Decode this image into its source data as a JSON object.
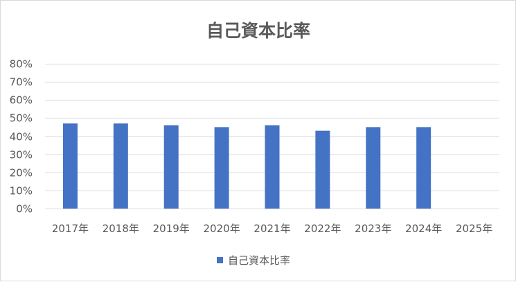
{
  "chart_data": {
    "type": "bar",
    "title": "自己資本比率",
    "xlabel": "",
    "ylabel": "",
    "categories": [
      "2017年",
      "2018年",
      "2019年",
      "2020年",
      "2021年",
      "2022年",
      "2023年",
      "2024年",
      "2025年"
    ],
    "series": [
      {
        "name": "自己資本比率",
        "values": [
          0.47,
          0.47,
          0.46,
          0.45,
          0.46,
          0.43,
          0.45,
          0.45,
          null
        ],
        "color": "#4472c4"
      }
    ],
    "ylim": [
      0,
      0.8
    ],
    "yticks": [
      0,
      0.1,
      0.2,
      0.3,
      0.4,
      0.5,
      0.6,
      0.7,
      0.8
    ],
    "ytick_labels": [
      "0%",
      "10%",
      "20%",
      "30%",
      "40%",
      "50%",
      "60%",
      "70%",
      "80%"
    ],
    "grid": true,
    "legend_position": "bottom"
  }
}
